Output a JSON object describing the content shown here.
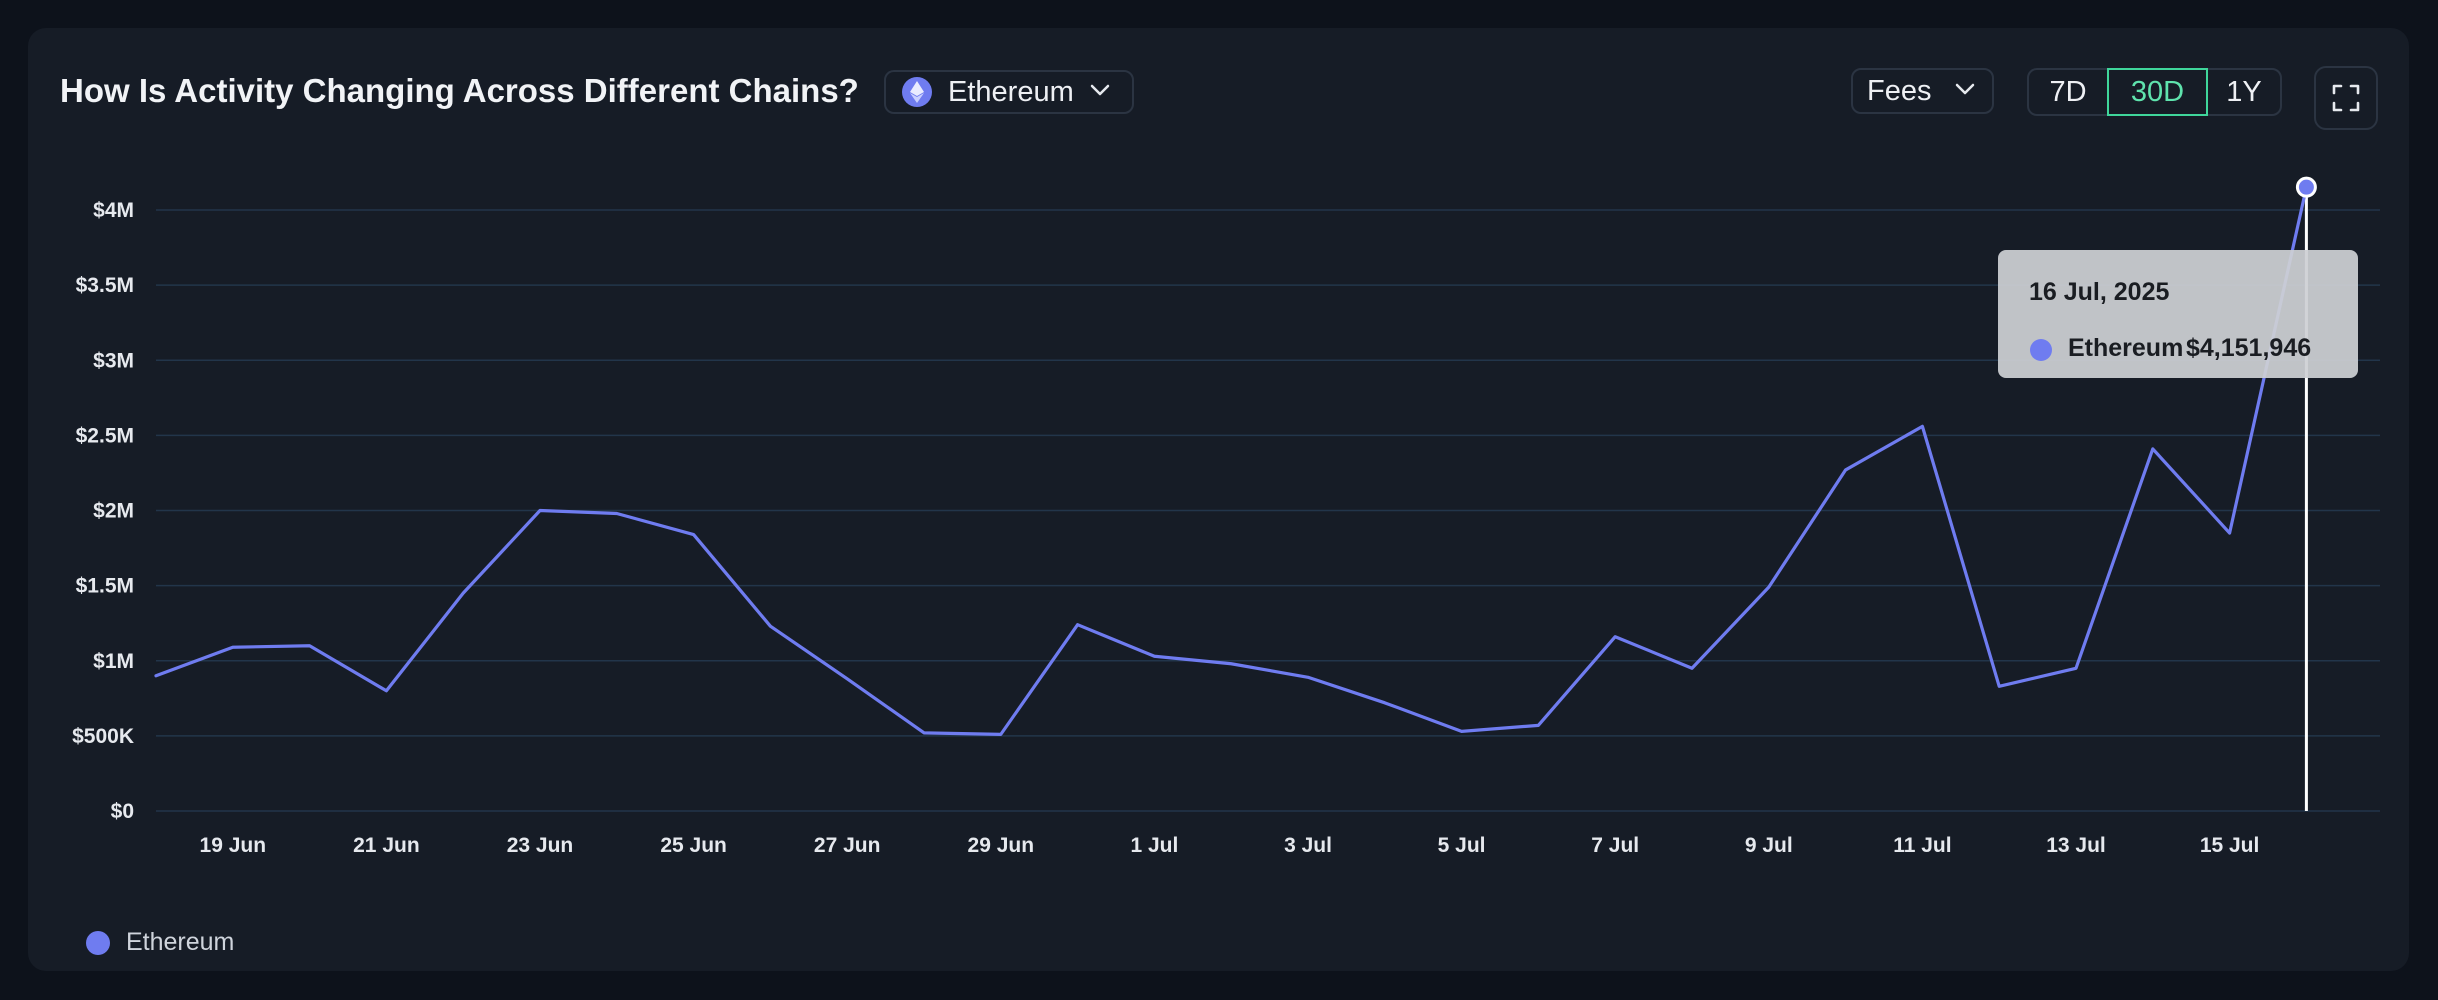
{
  "header": {
    "title": "How Is Activity Changing Across Different Chains?",
    "chain_selected": "Ethereum",
    "metric_selected": "Fees",
    "ranges": [
      "7D",
      "30D",
      "1Y"
    ],
    "active_range": "30D"
  },
  "colors": {
    "series": "#6f7cf0",
    "active_accent": "#3fd69b",
    "grid": "#22354a"
  },
  "tooltip": {
    "date": "16 Jul, 2025",
    "series": "Ethereum",
    "value": "$4,151,946"
  },
  "legend": {
    "label": "Ethereum"
  },
  "chart_data": {
    "type": "line",
    "x": [
      "18 Jun",
      "19 Jun",
      "20 Jun",
      "21 Jun",
      "22 Jun",
      "23 Jun",
      "24 Jun",
      "25 Jun",
      "26 Jun",
      "27 Jun",
      "28 Jun",
      "29 Jun",
      "30 Jun",
      "1 Jul",
      "2 Jul",
      "3 Jul",
      "4 Jul",
      "5 Jul",
      "6 Jul",
      "7 Jul",
      "8 Jul",
      "9 Jul",
      "10 Jul",
      "11 Jul",
      "12 Jul",
      "13 Jul",
      "14 Jul",
      "15 Jul",
      "16 Jul"
    ],
    "series": [
      {
        "name": "Ethereum",
        "values": [
          900000,
          1090000,
          1100000,
          800000,
          1450000,
          2000000,
          1980000,
          1840000,
          1230000,
          880000,
          520000,
          510000,
          1240000,
          1030000,
          980000,
          890000,
          720000,
          530000,
          570000,
          1160000,
          950000,
          1490000,
          2270000,
          2560000,
          830000,
          950000,
          2410000,
          1850000,
          4151946
        ]
      }
    ],
    "x_tick_labels": [
      "19 Jun",
      "21 Jun",
      "23 Jun",
      "25 Jun",
      "27 Jun",
      "29 Jun",
      "1 Jul",
      "3 Jul",
      "5 Jul",
      "7 Jul",
      "9 Jul",
      "11 Jul",
      "13 Jul",
      "15 Jul"
    ],
    "y_ticks": [
      {
        "value": 0,
        "label": "$0"
      },
      {
        "value": 500000,
        "label": "$500K"
      },
      {
        "value": 1000000,
        "label": "$1M"
      },
      {
        "value": 1500000,
        "label": "$1.5M"
      },
      {
        "value": 2000000,
        "label": "$2M"
      },
      {
        "value": 2500000,
        "label": "$2.5M"
      },
      {
        "value": 3000000,
        "label": "$3M"
      },
      {
        "value": 3500000,
        "label": "$3.5M"
      },
      {
        "value": 4000000,
        "label": "$4M"
      }
    ],
    "ylim": [
      0,
      4000000
    ],
    "grid": true,
    "legend_position": "bottom-left",
    "highlighted_point": "16 Jul"
  }
}
